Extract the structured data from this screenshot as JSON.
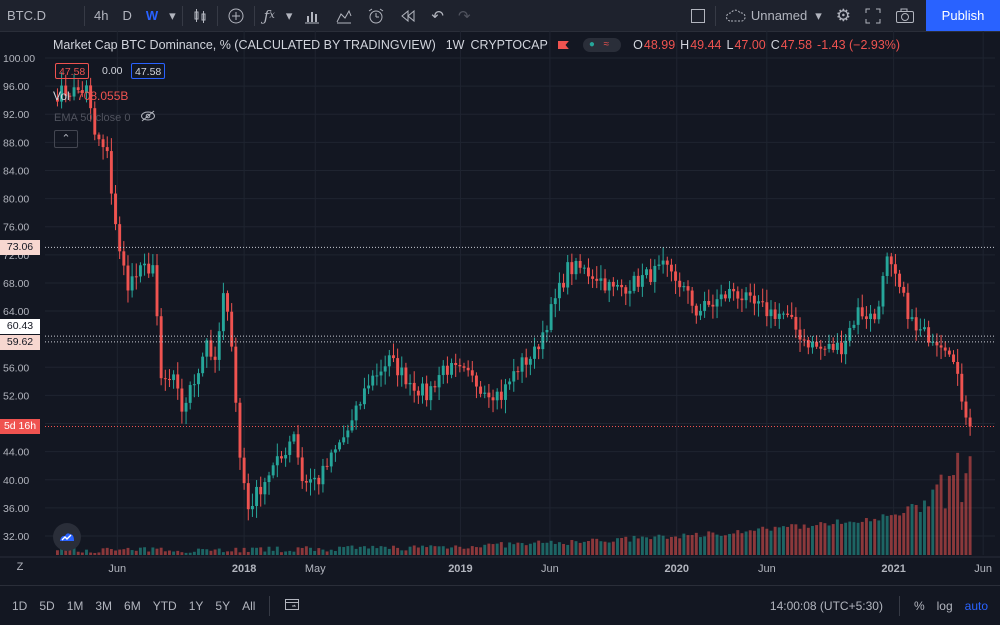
{
  "toolbar": {
    "symbol": "BTC.D",
    "intervals": [
      "4h",
      "D",
      "W"
    ],
    "active_interval": "W",
    "layout_name": "Unnamed",
    "publish_label": "Publish"
  },
  "legend": {
    "title": "Market Cap BTC Dominance, % (CALCULATED BY TRADINGVIEW)",
    "interval": "1W",
    "exchange": "CRYPTOCAP",
    "o_label": "O",
    "o": "48.99",
    "h_label": "H",
    "h": "49.44",
    "l_label": "L",
    "l": "47.00",
    "c_label": "C",
    "c": "47.58",
    "change": "-1.43 (−2.93%)",
    "bid": "47.58",
    "spread": "0.00",
    "ask": "47.58",
    "vol_label": "Vol",
    "vol_value": "708.055B",
    "ema_label": "EMA 50 close 0"
  },
  "price_tags": {
    "resist_1": "73.06",
    "resist_2": "60.43",
    "resist_3": "59.62",
    "countdown": "5d 16h"
  },
  "bottom": {
    "ranges": [
      "1D",
      "5D",
      "1M",
      "3M",
      "6M",
      "YTD",
      "1Y",
      "5Y",
      "All"
    ],
    "clock": "14:00:08 (UTC+5:30)",
    "percent": "%",
    "log": "log",
    "auto": "auto"
  },
  "colors": {
    "up": "#26a69a",
    "down": "#ef5350",
    "background": "#131722",
    "accent": "#2962ff"
  },
  "chart_data": {
    "type": "candlestick",
    "title": "Market Cap BTC Dominance, % (CALCULATED BY TRADINGVIEW)",
    "interval": "1W",
    "y_ticks": [
      "100.00",
      "96.00",
      "92.00",
      "88.00",
      "84.00",
      "80.00",
      "76.00",
      "72.00",
      "68.00",
      "64.00",
      "60.00",
      "56.00",
      "52.00",
      "48.00",
      "44.00",
      "40.00",
      "36.00",
      "32.00"
    ],
    "y_range": [
      31,
      100
    ],
    "x_ticks": [
      "Jun",
      "2018",
      "May",
      "2019",
      "Jun",
      "2020",
      "Jun",
      "2021",
      "Jun"
    ],
    "price_lines": [
      73.06,
      60.43,
      59.62
    ],
    "last_close": 47.58,
    "anchors": [
      [
        "2017-02-20",
        95.0
      ],
      [
        "2017-04-10",
        95.5
      ],
      [
        "2017-04-24",
        89.0
      ],
      [
        "2017-05-15",
        86.0
      ],
      [
        "2017-06-05",
        72.0
      ],
      [
        "2017-06-19",
        68.0
      ],
      [
        "2017-07-17",
        70.0
      ],
      [
        "2017-07-31",
        70.5
      ],
      [
        "2017-08-14",
        54.0
      ],
      [
        "2017-09-04",
        54.0
      ],
      [
        "2017-09-18",
        50.0
      ],
      [
        "2017-10-09",
        54.0
      ],
      [
        "2017-10-30",
        60.0
      ],
      [
        "2017-11-13",
        56.0
      ],
      [
        "2017-11-27",
        66.0
      ],
      [
        "2017-12-11",
        60.0
      ],
      [
        "2017-12-25",
        43.0
      ],
      [
        "2018-01-08",
        36.0
      ],
      [
        "2018-01-22",
        38.0
      ],
      [
        "2018-02-12",
        41.0
      ],
      [
        "2018-03-05",
        43.0
      ],
      [
        "2018-03-26",
        47.0
      ],
      [
        "2018-04-09",
        40.0
      ],
      [
        "2018-05-07",
        40.0
      ],
      [
        "2018-06-04",
        44.0
      ],
      [
        "2018-07-02",
        48.0
      ],
      [
        "2018-07-30",
        54.0
      ],
      [
        "2018-09-03",
        57.0
      ],
      [
        "2018-10-08",
        54.0
      ],
      [
        "2018-11-05",
        52.0
      ],
      [
        "2018-12-03",
        56.0
      ],
      [
        "2019-01-07",
        55.0
      ],
      [
        "2019-02-11",
        53.0
      ],
      [
        "2019-03-11",
        52.0
      ],
      [
        "2019-04-08",
        56.0
      ],
      [
        "2019-05-06",
        58.0
      ],
      [
        "2019-06-03",
        64.0
      ],
      [
        "2019-07-01",
        70.0
      ],
      [
        "2019-07-22",
        70.0
      ],
      [
        "2019-08-19",
        69.0
      ],
      [
        "2019-09-16",
        67.0
      ],
      [
        "2019-10-21",
        68.0
      ],
      [
        "2019-11-11",
        69.0
      ],
      [
        "2019-12-09",
        70.0
      ],
      [
        "2020-01-06",
        68.0
      ],
      [
        "2020-02-03",
        64.0
      ],
      [
        "2020-03-02",
        65.0
      ],
      [
        "2020-04-06",
        67.0
      ],
      [
        "2020-05-04",
        65.0
      ],
      [
        "2020-06-01",
        64.0
      ],
      [
        "2020-06-29",
        63.5
      ],
      [
        "2020-08-03",
        60.0
      ],
      [
        "2020-08-31",
        58.5
      ],
      [
        "2020-10-05",
        59.0
      ],
      [
        "2020-11-02",
        64.0
      ],
      [
        "2020-11-30",
        63.0
      ],
      [
        "2020-12-21",
        71.0
      ],
      [
        "2021-01-11",
        67.0
      ],
      [
        "2021-02-08",
        61.0
      ],
      [
        "2021-03-08",
        60.5
      ],
      [
        "2021-04-05",
        59.0
      ],
      [
        "2021-04-19",
        54.0
      ],
      [
        "2021-05-10",
        47.6
      ]
    ]
  }
}
